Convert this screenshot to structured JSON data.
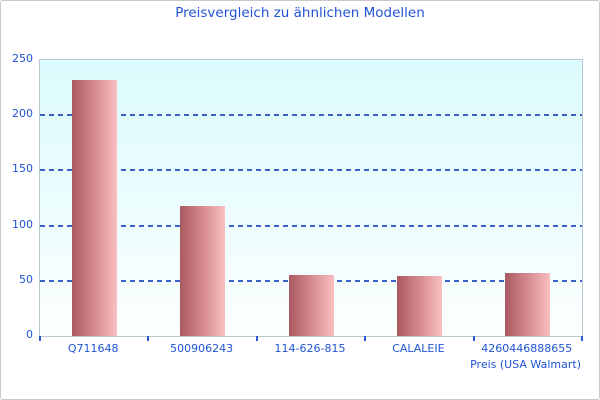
{
  "chart_data": {
    "type": "bar",
    "title": "Preisvergleich zu ähnlichen Modellen",
    "categories": [
      "Q711648",
      "500906243",
      "114-626-815",
      "CALALEIE",
      "4260446888655"
    ],
    "values": [
      232,
      118,
      55,
      54,
      57
    ],
    "xlabel": "Preis (USA Walmart)",
    "ylabel": "",
    "ylim": [
      0,
      250
    ],
    "yticks": [
      0,
      50,
      100,
      150,
      200,
      250
    ],
    "grid": "horizontal dashed lines at 50, 100, 150, 200",
    "legend_position": "none",
    "colors": {
      "title_text": "#2053d4",
      "axis_text": "#2053d4",
      "gridline": "#3c63cc",
      "tick_mark": "#2b5cd0",
      "plot_border": "#b9c9d2",
      "plot_background_top": "#dcfbfe",
      "plot_background_bottom": "#fcfffe",
      "bar_gradient_left": "#a95a61",
      "bar_gradient_mid": "#d4888d",
      "bar_gradient_right": "#f9bfc1"
    }
  }
}
